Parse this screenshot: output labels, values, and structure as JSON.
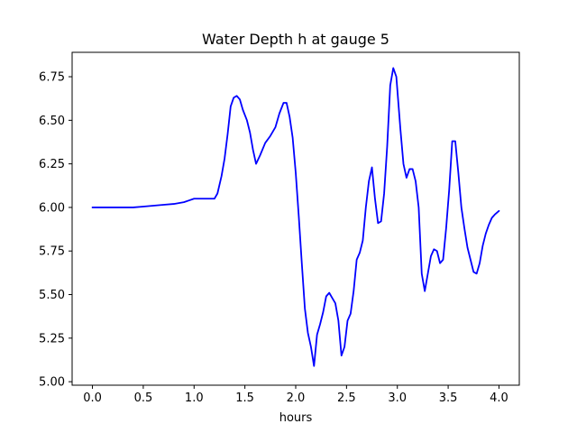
{
  "chart_data": {
    "type": "line",
    "title": "Water Depth h at gauge 5",
    "xlabel": "hours",
    "ylabel": "",
    "xlim": [
      -0.2,
      4.2
    ],
    "ylim": [
      4.98,
      6.89
    ],
    "xticks": [
      0.0,
      0.5,
      1.0,
      1.5,
      2.0,
      2.5,
      3.0,
      3.5,
      4.0
    ],
    "xtick_labels": [
      "0.0",
      "0.5",
      "1.0",
      "1.5",
      "2.0",
      "2.5",
      "3.0",
      "3.5",
      "4.0"
    ],
    "yticks": [
      5.0,
      5.25,
      5.5,
      5.75,
      6.0,
      6.25,
      6.5,
      6.75
    ],
    "ytick_labels": [
      "5.00",
      "5.25",
      "5.50",
      "5.75",
      "6.00",
      "6.25",
      "6.50",
      "6.75"
    ],
    "grid": false,
    "series": [
      {
        "color": "#0000ff",
        "x": [
          0.0,
          0.2,
          0.4,
          0.5,
          0.6,
          0.7,
          0.8,
          0.85,
          0.9,
          0.95,
          1.0,
          1.1,
          1.2,
          1.23,
          1.27,
          1.3,
          1.33,
          1.36,
          1.39,
          1.42,
          1.45,
          1.48,
          1.52,
          1.55,
          1.58,
          1.61,
          1.65,
          1.7,
          1.75,
          1.8,
          1.84,
          1.88,
          1.91,
          1.94,
          1.97,
          2.0,
          2.03,
          2.06,
          2.09,
          2.12,
          2.15,
          2.18,
          2.21,
          2.24,
          2.27,
          2.3,
          2.33,
          2.36,
          2.39,
          2.42,
          2.45,
          2.48,
          2.51,
          2.54,
          2.57,
          2.6,
          2.63,
          2.66,
          2.69,
          2.72,
          2.75,
          2.78,
          2.81,
          2.84,
          2.87,
          2.9,
          2.93,
          2.96,
          2.99,
          3.03,
          3.06,
          3.09,
          3.12,
          3.15,
          3.18,
          3.21,
          3.24,
          3.27,
          3.3,
          3.33,
          3.36,
          3.39,
          3.42,
          3.45,
          3.48,
          3.51,
          3.54,
          3.57,
          3.6,
          3.63,
          3.66,
          3.69,
          3.72,
          3.75,
          3.78,
          3.81,
          3.84,
          3.87,
          3.9,
          3.93,
          3.96,
          4.0
        ],
        "y": [
          6.0,
          6.0,
          6.0,
          6.005,
          6.01,
          6.015,
          6.02,
          6.025,
          6.03,
          6.04,
          6.05,
          6.05,
          6.05,
          6.08,
          6.18,
          6.28,
          6.42,
          6.58,
          6.63,
          6.64,
          6.62,
          6.56,
          6.5,
          6.43,
          6.33,
          6.25,
          6.3,
          6.37,
          6.41,
          6.46,
          6.54,
          6.6,
          6.6,
          6.52,
          6.4,
          6.2,
          5.95,
          5.68,
          5.42,
          5.28,
          5.2,
          5.09,
          5.27,
          5.33,
          5.4,
          5.49,
          5.51,
          5.48,
          5.45,
          5.35,
          5.15,
          5.2,
          5.35,
          5.39,
          5.52,
          5.7,
          5.74,
          5.81,
          6.0,
          6.15,
          6.23,
          6.05,
          5.91,
          5.92,
          6.08,
          6.35,
          6.7,
          6.8,
          6.75,
          6.45,
          6.25,
          6.17,
          6.22,
          6.22,
          6.15,
          6.0,
          5.62,
          5.52,
          5.62,
          5.72,
          5.76,
          5.75,
          5.68,
          5.7,
          5.88,
          6.1,
          6.38,
          6.38,
          6.2,
          6.0,
          5.88,
          5.77,
          5.7,
          5.63,
          5.62,
          5.68,
          5.78,
          5.85,
          5.9,
          5.94,
          5.96,
          5.98
        ]
      }
    ]
  }
}
